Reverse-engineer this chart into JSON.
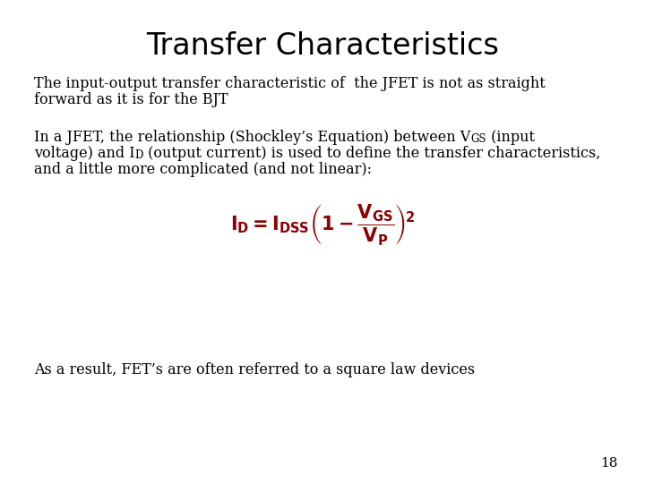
{
  "title": "Transfer Characteristics",
  "title_fontsize": 24,
  "title_fontfamily": "sans-serif",
  "title_bold": false,
  "background_color": "#ffffff",
  "text_color": "#000000",
  "red_color": "#8b0000",
  "para1_line1": "The input-output transfer characteristic of  the JFET is not as straight",
  "para1_line2": "forward as it is for the BJT",
  "para2_line1a": "In a JFET, the relationship (Shockley’s Equation) between V",
  "para2_line1b": "GS",
  "para2_line1c": " (input",
  "para2_line2a": "voltage) and I",
  "para2_line2b": "D",
  "para2_line2c": " (output current) is used to define the transfer characteristics,",
  "para2_line3": "and a little more complicated (and not linear):",
  "formula": "$\\mathbf{I_D = I_{DSS}\\left(1 - \\dfrac{V_{GS}}{V_P}\\right)^{\\!2}}$",
  "para3": "As a result, FET’s are often referred to a square law devices",
  "page_number": "18",
  "body_fontsize": 11.5,
  "body_fontfamily": "serif",
  "formula_fontsize": 15
}
